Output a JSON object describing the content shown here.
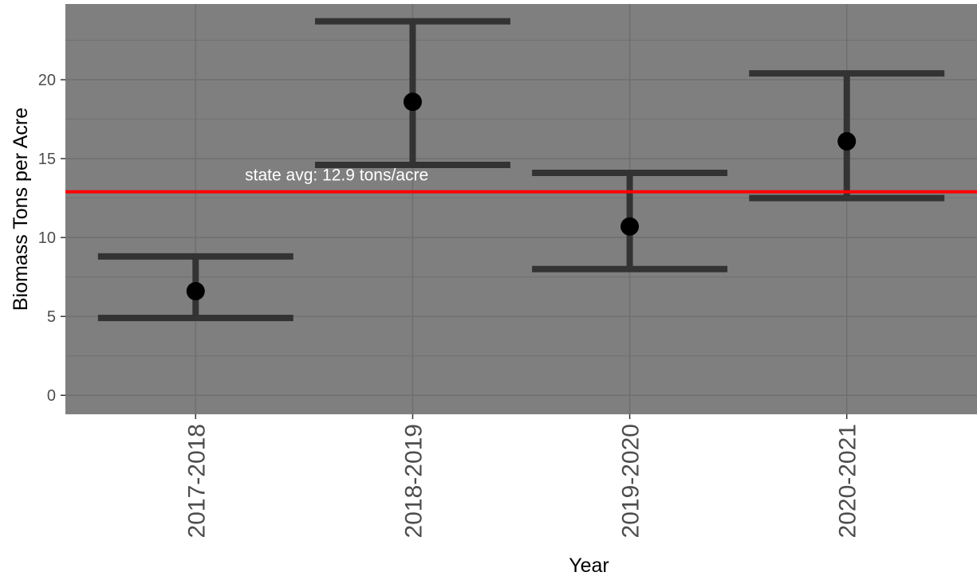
{
  "chart_data": {
    "type": "errorbar",
    "title": "",
    "xlabel": "Year",
    "ylabel": "Biomass Tons per Acre",
    "categories": [
      "2017-2018",
      "2018-2019",
      "2019-2020",
      "2020-2021"
    ],
    "series": [
      {
        "values": [
          6.6,
          18.6,
          10.7,
          16.1
        ],
        "lower": [
          4.9,
          14.6,
          8.0,
          12.5
        ],
        "upper": [
          8.8,
          23.7,
          14.1,
          20.4
        ]
      }
    ],
    "ylim": [
      -1.2,
      24.8
    ],
    "yticks": [
      0,
      5,
      10,
      15,
      20
    ],
    "grid": true,
    "reference_line": {
      "value": 12.9,
      "label": "state avg: 12.9 tons/acre",
      "color": "#ff0000"
    },
    "colors": {
      "panel": "#7f7f7f",
      "gridline": "#6e6e6e",
      "errorbar": "#333333",
      "point": "#000000"
    }
  }
}
